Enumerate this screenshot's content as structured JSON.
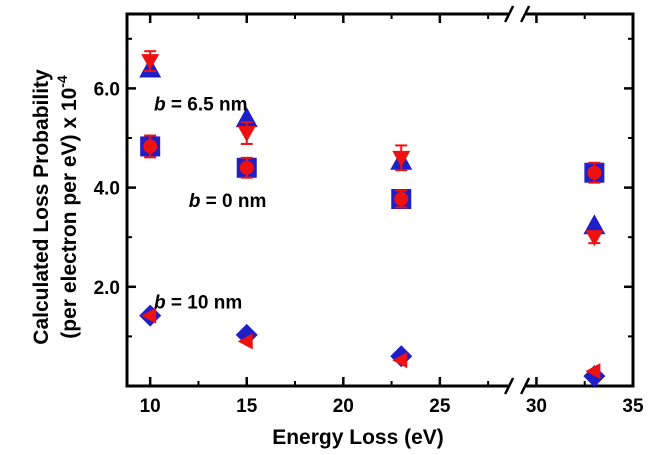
{
  "chart_data": {
    "type": "scatter",
    "xlabel": "Energy Loss (eV)",
    "ylabel_line1": "Calculated Loss Probability",
    "ylabel_line2": "(per electron per eV) x 10",
    "ylabel_exponent": "-4",
    "xlim": [
      8.8,
      35
    ],
    "ylim": [
      0,
      7.5
    ],
    "x_axis_break_between": [
      28,
      30
    ],
    "x_ticks": [
      10,
      15,
      20,
      25,
      30,
      35
    ],
    "x_tick_labels": [
      "10",
      "15",
      "20",
      "25",
      "30",
      "35"
    ],
    "y_ticks": [
      2,
      4,
      6
    ],
    "y_tick_labels": [
      "2.0",
      "4.0",
      "6.0"
    ],
    "grid": false,
    "legend": "none",
    "colors": {
      "blue": "#1f1fc8",
      "red": "#ee1111"
    },
    "annotations": [
      {
        "italic": "b",
        "text": " = 6.5 nm",
        "x": 10.2,
        "y": 5.7
      },
      {
        "italic": "b",
        "text": " = 0 nm",
        "x": 12.0,
        "y": 3.75
      },
      {
        "italic": "b",
        "text": " = 10 nm",
        "x": 10.2,
        "y": 1.7
      }
    ],
    "series": [
      {
        "marker": "blue-triangle-up",
        "group": "b = 6.5 nm",
        "points": [
          {
            "x": 10,
            "y": 6.38
          },
          {
            "x": 15,
            "y": 5.38
          },
          {
            "x": 23,
            "y": 4.52
          },
          {
            "x": 33,
            "y": 3.22
          }
        ]
      },
      {
        "marker": "red-triangle-down",
        "group": "b = 6.5 nm",
        "points": [
          {
            "x": 10,
            "y": 6.55,
            "err": 0.2
          },
          {
            "x": 15,
            "y": 5.1,
            "err": 0.22
          },
          {
            "x": 23,
            "y": 4.6,
            "err": 0.25
          },
          {
            "x": 33,
            "y": 3.0,
            "err": 0.12
          }
        ]
      },
      {
        "marker": "blue-square",
        "group": "b = 0 nm",
        "points": [
          {
            "x": 10,
            "y": 4.83
          },
          {
            "x": 15,
            "y": 4.4
          },
          {
            "x": 23,
            "y": 3.77
          },
          {
            "x": 33,
            "y": 4.3
          }
        ]
      },
      {
        "marker": "red-circle",
        "group": "b = 0 nm",
        "points": [
          {
            "x": 10,
            "y": 4.83,
            "err": 0.22
          },
          {
            "x": 15,
            "y": 4.4,
            "err": 0.2
          },
          {
            "x": 23,
            "y": 3.77,
            "err": 0.17
          },
          {
            "x": 33,
            "y": 4.3,
            "err": 0.2
          }
        ]
      },
      {
        "marker": "blue-diamond",
        "group": "b = 10 nm",
        "points": [
          {
            "x": 10,
            "y": 1.42
          },
          {
            "x": 15,
            "y": 1.03
          },
          {
            "x": 23,
            "y": 0.6
          },
          {
            "x": 33,
            "y": 0.2
          }
        ]
      },
      {
        "marker": "red-triangle-left",
        "group": "b = 10 nm",
        "points": [
          {
            "x": 10,
            "y": 1.42
          },
          {
            "x": 15,
            "y": 0.9
          },
          {
            "x": 23,
            "y": 0.52
          },
          {
            "x": 33,
            "y": 0.3
          }
        ]
      }
    ]
  }
}
